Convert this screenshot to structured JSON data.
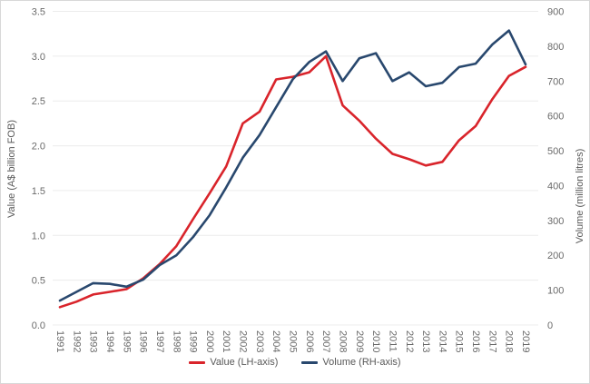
{
  "chart_data": {
    "type": "line",
    "x": [
      1991,
      1992,
      1993,
      1994,
      1995,
      1996,
      1997,
      1998,
      1999,
      2000,
      2001,
      2002,
      2003,
      2004,
      2005,
      2006,
      2007,
      2008,
      2009,
      2010,
      2011,
      2012,
      2013,
      2014,
      2015,
      2016,
      2017,
      2018,
      2019
    ],
    "series": [
      {
        "name": "Value (LH-axis)",
        "axis": "left",
        "color": "#d9242b",
        "values": [
          0.2,
          0.26,
          0.34,
          0.37,
          0.4,
          0.52,
          0.68,
          0.88,
          1.18,
          1.47,
          1.77,
          2.25,
          2.38,
          2.74,
          2.77,
          2.82,
          3.0,
          2.45,
          2.28,
          2.08,
          1.91,
          1.85,
          1.78,
          1.82,
          2.06,
          2.22,
          2.52,
          2.78,
          2.88
        ]
      },
      {
        "name": "Volume (RH-axis)",
        "axis": "right",
        "color": "#29486e",
        "values": [
          70,
          95,
          120,
          118,
          110,
          130,
          172,
          200,
          252,
          315,
          395,
          480,
          545,
          625,
          705,
          755,
          785,
          700,
          765,
          780,
          700,
          725,
          685,
          695,
          740,
          750,
          805,
          845,
          748
        ]
      }
    ],
    "left_axis": {
      "label": "Value (A$ billion FOB)",
      "min": 0,
      "max": 3.5,
      "step": 0.5,
      "ticks": [
        "0.0",
        "0.5",
        "1.0",
        "1.5",
        "2.0",
        "2.5",
        "3.0",
        "3.5"
      ]
    },
    "right_axis": {
      "label": "Volume (million litres)",
      "min": 0,
      "max": 900,
      "step": 100,
      "ticks": [
        "0",
        "100",
        "200",
        "300",
        "400",
        "500",
        "600",
        "700",
        "800",
        "900"
      ]
    },
    "grid": true,
    "gridline_color": "#ececec",
    "legend_position": "bottom",
    "title": "",
    "xlabel": "",
    "line_width": 2.6
  }
}
